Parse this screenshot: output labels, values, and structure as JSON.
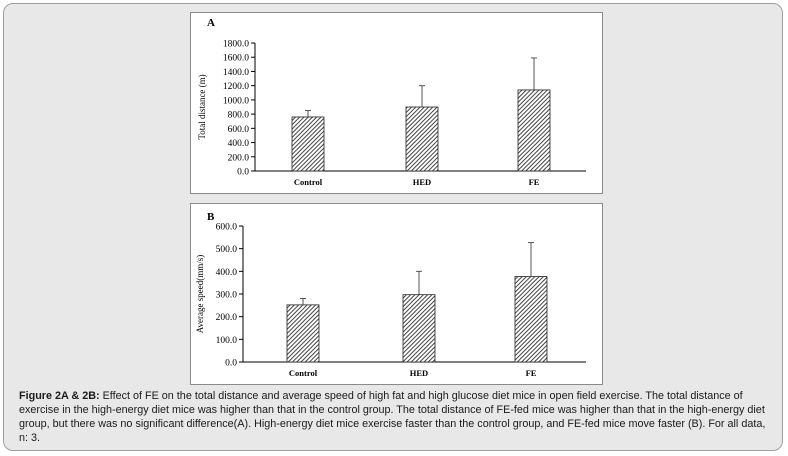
{
  "chart_data": [
    {
      "type": "bar",
      "panel": "A",
      "title": "A",
      "categories": [
        "Control",
        "HED",
        "FE"
      ],
      "values": [
        760,
        900,
        1140
      ],
      "errors": [
        90,
        300,
        450
      ],
      "ylabel": "Total distance (m)",
      "xlabel": "",
      "ylim": [
        0,
        1800
      ],
      "yticks": [
        "0.0",
        "200.0",
        "400.0",
        "600.0",
        "800.0",
        "1000.0",
        "1200.0",
        "1400.0",
        "1600.0",
        "1800.0"
      ],
      "bar_color": "#3a3a3a",
      "grid": false
    },
    {
      "type": "bar",
      "panel": "B",
      "title": "B",
      "categories": [
        "Control",
        "HED",
        "FE"
      ],
      "values": [
        252,
        297,
        377
      ],
      "errors": [
        28,
        103,
        150
      ],
      "ylabel": "Average speed(mm/s)",
      "xlabel": "",
      "ylim": [
        0,
        600
      ],
      "yticks": [
        "0.0",
        "100.0",
        "200.0",
        "300.0",
        "400.0",
        "500.0",
        "600.0"
      ],
      "bar_color": "#3a3a3a",
      "grid": false
    }
  ],
  "caption": {
    "label": "Figure 2A & 2B:",
    "text": " Effect of FE on the total distance and average speed of high fat and high glucose diet mice in open field exercise. The total distance of exercise in the high-energy diet mice was higher than that in the control group. The total distance of FE-fed mice was higher than that in the high-energy diet group, but there was no significant difference(A). High-energy diet mice exercise faster than the control group, and FE-fed mice move faster (B). For all data, n: 3."
  }
}
